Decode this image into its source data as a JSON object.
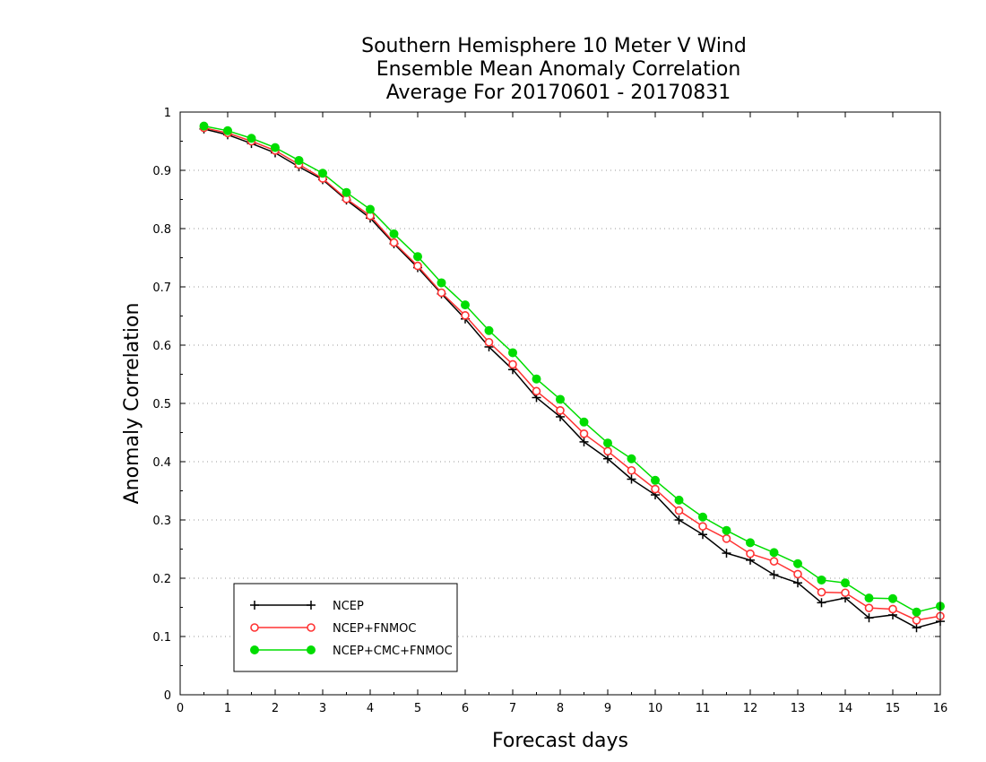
{
  "chart_data": {
    "type": "line",
    "title_lines": [
      "Southern Hemisphere 10 Meter V Wind",
      "Ensemble Mean Anomaly Correlation",
      "Average For 20170601 - 20170831"
    ],
    "xlabel": "Forecast days",
    "ylabel": "Anomaly Correlation",
    "xlim": [
      0,
      16
    ],
    "ylim": [
      0,
      1
    ],
    "xticks": [
      0,
      1,
      2,
      3,
      4,
      5,
      6,
      7,
      8,
      9,
      10,
      11,
      12,
      13,
      14,
      15,
      16
    ],
    "yticks": [
      0,
      0.1,
      0.2,
      0.3,
      0.4,
      0.5,
      0.6,
      0.7,
      0.8,
      0.9,
      1
    ],
    "x": [
      0.5,
      1,
      1.5,
      2,
      2.5,
      3,
      3.5,
      4,
      4.5,
      5,
      5.5,
      6,
      6.5,
      7,
      7.5,
      8,
      8.5,
      9,
      9.5,
      10,
      10.5,
      11,
      11.5,
      12,
      12.5,
      13,
      13.5,
      14,
      14.5,
      15,
      15.5,
      16
    ],
    "grid": "horizontal dotted",
    "legend_position": "bottom-left",
    "series": [
      {
        "name": "NCEP",
        "color": "#000000",
        "marker": "plus",
        "values": [
          0.971,
          0.961,
          0.946,
          0.93,
          0.906,
          0.884,
          0.849,
          0.818,
          0.774,
          0.733,
          0.688,
          0.645,
          0.597,
          0.558,
          0.51,
          0.477,
          0.434,
          0.405,
          0.37,
          0.343,
          0.3,
          0.275,
          0.243,
          0.231,
          0.206,
          0.192,
          0.158,
          0.166,
          0.132,
          0.137,
          0.115,
          0.126
        ]
      },
      {
        "name": "NCEP+FNMOC",
        "color": "#ff3333",
        "marker": "open-circle",
        "values": [
          0.973,
          0.964,
          0.95,
          0.934,
          0.91,
          0.886,
          0.851,
          0.822,
          0.776,
          0.736,
          0.69,
          0.651,
          0.605,
          0.567,
          0.521,
          0.488,
          0.448,
          0.418,
          0.385,
          0.353,
          0.316,
          0.289,
          0.268,
          0.242,
          0.229,
          0.207,
          0.176,
          0.175,
          0.149,
          0.147,
          0.128,
          0.135
        ]
      },
      {
        "name": "NCEP+CMC+FNMOC",
        "color": "#00dd00",
        "marker": "filled-circle",
        "values": [
          0.976,
          0.968,
          0.955,
          0.939,
          0.917,
          0.895,
          0.862,
          0.833,
          0.791,
          0.752,
          0.707,
          0.669,
          0.625,
          0.587,
          0.542,
          0.507,
          0.468,
          0.432,
          0.405,
          0.368,
          0.334,
          0.305,
          0.282,
          0.261,
          0.244,
          0.225,
          0.197,
          0.192,
          0.166,
          0.165,
          0.142,
          0.152
        ]
      }
    ]
  }
}
